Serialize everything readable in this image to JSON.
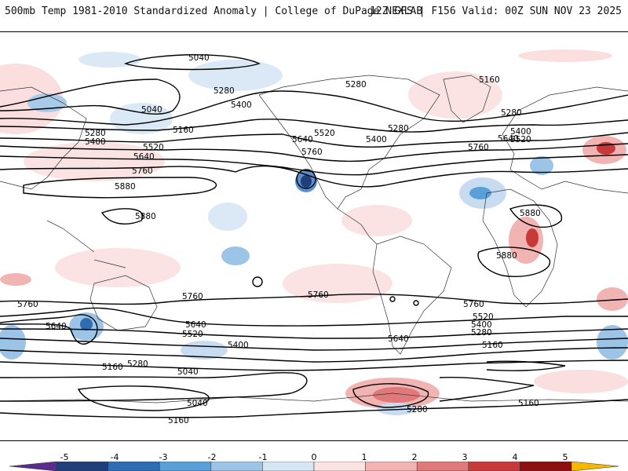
{
  "header": {
    "left_title": "500mb Temp 1981-2010 Standardized Anomaly | College of DuPage NEXLAB",
    "right_title": "12Z GFS | F156 Valid: 00Z SUN NOV 23 2025"
  },
  "contours": {
    "labels": [
      {
        "text": "5040"
      },
      {
        "text": "5280"
      },
      {
        "text": "5400"
      },
      {
        "text": "5040"
      },
      {
        "text": "5160"
      },
      {
        "text": "5280"
      },
      {
        "text": "5400"
      },
      {
        "text": "5520"
      },
      {
        "text": "5640"
      },
      {
        "text": "5760"
      },
      {
        "text": "5880"
      },
      {
        "text": "5880"
      },
      {
        "text": "5280"
      },
      {
        "text": "5520"
      },
      {
        "text": "5640"
      },
      {
        "text": "5760"
      },
      {
        "text": "5280"
      },
      {
        "text": "5400"
      },
      {
        "text": "5160"
      },
      {
        "text": "5280"
      },
      {
        "text": "5400"
      },
      {
        "text": "5520"
      },
      {
        "text": "5640"
      },
      {
        "text": "5760"
      },
      {
        "text": "5880"
      },
      {
        "text": "5880"
      },
      {
        "text": "5760"
      },
      {
        "text": "5640"
      },
      {
        "text": "5760"
      },
      {
        "text": "5640"
      },
      {
        "text": "5520"
      },
      {
        "text": "5400"
      },
      {
        "text": "5160"
      },
      {
        "text": "5280"
      },
      {
        "text": "5040"
      },
      {
        "text": "5040"
      },
      {
        "text": "5160"
      },
      {
        "text": "5760"
      },
      {
        "text": "5760"
      },
      {
        "text": "5640"
      },
      {
        "text": "5520"
      },
      {
        "text": "5400"
      },
      {
        "text": "5280"
      },
      {
        "text": "5160"
      },
      {
        "text": "5160"
      },
      {
        "text": "5280"
      }
    ]
  },
  "colorbar": {
    "ticks": [
      "-5",
      "-4",
      "-3",
      "-2",
      "-1",
      "0",
      "1",
      "2",
      "3",
      "4",
      "5"
    ],
    "colors": [
      "#5a2d8c",
      "#1f3e7a",
      "#2f6db3",
      "#5aa0d8",
      "#9cc4e6",
      "#d6e6f4",
      "#fbe3e3",
      "#f2b3b3",
      "#e07a7a",
      "#c83a3a",
      "#8c1010",
      "#f5b800"
    ]
  }
}
